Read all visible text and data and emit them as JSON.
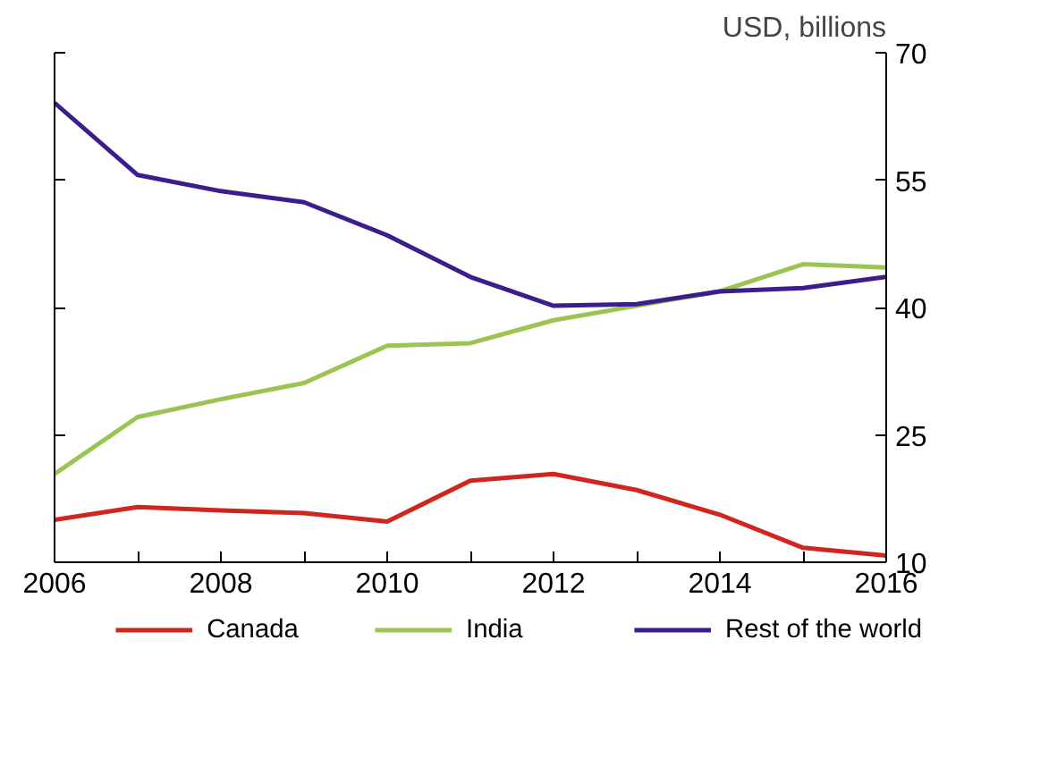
{
  "chart_data": {
    "type": "line",
    "ylabel": "USD, billions",
    "x": [
      2006,
      2007,
      2008,
      2009,
      2010,
      2011,
      2012,
      2013,
      2014,
      2015,
      2016
    ],
    "series": [
      {
        "name": "Canada",
        "color": "#d0261d",
        "values": [
          15.0,
          16.5,
          16.1,
          15.8,
          14.8,
          19.6,
          20.4,
          18.5,
          15.6,
          11.7,
          10.8
        ]
      },
      {
        "name": "India",
        "color": "#9bc453",
        "values": [
          20.4,
          27.1,
          29.2,
          31.1,
          35.5,
          35.8,
          38.5,
          40.2,
          41.9,
          45.1,
          44.7
        ]
      },
      {
        "name": "Rest of the world",
        "color": "#3b1e8c",
        "values": [
          64.1,
          55.6,
          53.7,
          52.4,
          48.5,
          43.6,
          40.2,
          40.4,
          41.9,
          42.3,
          43.6
        ]
      }
    ],
    "xlim": [
      2006,
      2016
    ],
    "ylim": [
      10,
      70
    ],
    "xticks": [
      2006,
      {
        "value": 2007,
        "label": null
      },
      2008,
      {
        "value": 2009,
        "label": null
      },
      2010,
      {
        "value": 2011,
        "label": null
      },
      2012,
      {
        "value": 2013,
        "label": null
      },
      2014,
      {
        "value": 2015,
        "label": null
      },
      2016
    ],
    "yticks": [
      10,
      25,
      40,
      55,
      70
    ],
    "grid": false,
    "legend": "bottom",
    "marker": "none",
    "line_style": "solid"
  }
}
